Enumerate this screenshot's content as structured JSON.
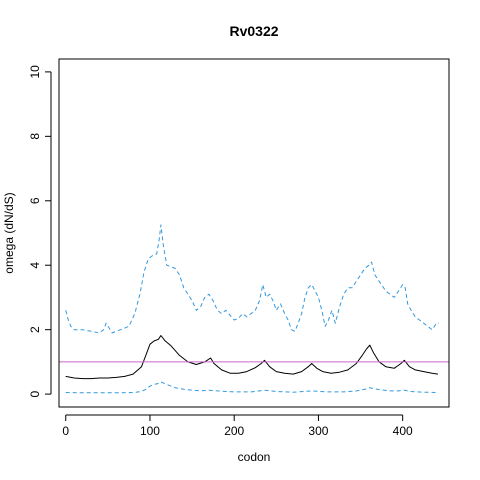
{
  "chart_data": {
    "type": "line",
    "title": "Rv0322",
    "xlabel": "codon",
    "ylabel": "omega (dN/dS)",
    "xlim": [
      -8,
      455
    ],
    "ylim": [
      -0.4,
      10.4
    ],
    "xticks": [
      0,
      100,
      200,
      300,
      400
    ],
    "yticks": [
      0,
      2,
      4,
      6,
      8,
      10
    ],
    "grid": false,
    "reference_line": {
      "y": 1,
      "color": "#cc66cc"
    },
    "series": [
      {
        "style": "solid",
        "color": "#000000",
        "x": [
          0,
          10,
          20,
          30,
          40,
          50,
          60,
          70,
          80,
          90,
          95,
          100,
          105,
          110,
          113,
          118,
          125,
          135,
          145,
          155,
          165,
          172,
          176,
          185,
          195,
          205,
          215,
          225,
          232,
          236,
          242,
          250,
          260,
          270,
          280,
          288,
          292,
          298,
          305,
          315,
          325,
          335,
          345,
          352,
          357,
          361,
          365,
          372,
          380,
          390,
          398,
          402,
          408,
          415,
          425,
          435,
          442
        ],
        "y": [
          0.55,
          0.5,
          0.48,
          0.48,
          0.5,
          0.5,
          0.52,
          0.55,
          0.62,
          0.85,
          1.2,
          1.55,
          1.65,
          1.7,
          1.82,
          1.65,
          1.5,
          1.2,
          1.0,
          0.92,
          1.0,
          1.12,
          0.95,
          0.75,
          0.65,
          0.65,
          0.7,
          0.82,
          0.95,
          1.05,
          0.85,
          0.7,
          0.65,
          0.62,
          0.7,
          0.85,
          0.95,
          0.8,
          0.7,
          0.65,
          0.68,
          0.75,
          0.95,
          1.2,
          1.4,
          1.52,
          1.3,
          1.0,
          0.85,
          0.8,
          0.95,
          1.05,
          0.85,
          0.75,
          0.7,
          0.65,
          0.62
        ]
      },
      {
        "style": "dashed",
        "color": "#3399dd",
        "x": [
          0,
          3,
          6,
          10,
          20,
          30,
          40,
          45,
          48,
          55,
          65,
          75,
          82,
          88,
          93,
          98,
          103,
          108,
          111,
          113,
          116,
          120,
          130,
          135,
          140,
          145,
          150,
          155,
          160,
          165,
          170,
          175,
          180,
          185,
          190,
          195,
          200,
          205,
          210,
          215,
          220,
          225,
          230,
          234,
          238,
          242,
          246,
          250,
          255,
          260,
          264,
          268,
          272,
          276,
          280,
          284,
          288,
          292,
          296,
          300,
          304,
          308,
          312,
          316,
          320,
          325,
          330,
          335,
          340,
          345,
          350,
          355,
          360,
          363,
          367,
          372,
          380,
          385,
          390,
          395,
          400,
          403,
          406,
          410,
          415,
          420,
          425,
          430,
          435,
          440,
          443
        ],
        "y": [
          2.6,
          2.3,
          2.1,
          2.0,
          2.0,
          1.95,
          1.9,
          2.0,
          2.2,
          1.9,
          2.0,
          2.1,
          2.5,
          3.1,
          3.8,
          4.2,
          4.3,
          4.35,
          4.8,
          5.25,
          4.6,
          4.0,
          3.9,
          3.7,
          3.3,
          3.1,
          2.9,
          2.6,
          2.7,
          3.0,
          3.1,
          2.9,
          2.6,
          2.5,
          2.6,
          2.45,
          2.3,
          2.35,
          2.5,
          2.4,
          2.5,
          2.6,
          2.9,
          3.4,
          3.0,
          3.1,
          2.9,
          2.6,
          2.8,
          2.5,
          2.3,
          2.0,
          1.95,
          2.2,
          2.5,
          3.0,
          3.3,
          3.4,
          3.2,
          3.0,
          2.6,
          2.1,
          2.3,
          2.6,
          2.2,
          2.7,
          3.1,
          3.3,
          3.3,
          3.5,
          3.7,
          3.9,
          4.0,
          4.1,
          3.7,
          3.5,
          3.2,
          3.1,
          3.0,
          3.2,
          3.4,
          3.3,
          2.8,
          2.6,
          2.4,
          2.3,
          2.2,
          2.1,
          2.0,
          2.2,
          2.2
        ]
      },
      {
        "style": "dashed",
        "color": "#3399dd",
        "x": [
          0,
          20,
          40,
          60,
          80,
          90,
          95,
          100,
          105,
          110,
          113,
          120,
          130,
          140,
          150,
          160,
          170,
          180,
          200,
          220,
          236,
          250,
          270,
          292,
          310,
          330,
          345,
          355,
          361,
          370,
          385,
          395,
          402,
          410,
          425,
          442
        ],
        "y": [
          0.05,
          0.04,
          0.04,
          0.04,
          0.05,
          0.08,
          0.15,
          0.25,
          0.3,
          0.33,
          0.38,
          0.3,
          0.2,
          0.15,
          0.12,
          0.1,
          0.12,
          0.1,
          0.07,
          0.07,
          0.12,
          0.08,
          0.06,
          0.1,
          0.07,
          0.07,
          0.1,
          0.15,
          0.2,
          0.15,
          0.1,
          0.1,
          0.12,
          0.08,
          0.06,
          0.05
        ]
      }
    ]
  }
}
